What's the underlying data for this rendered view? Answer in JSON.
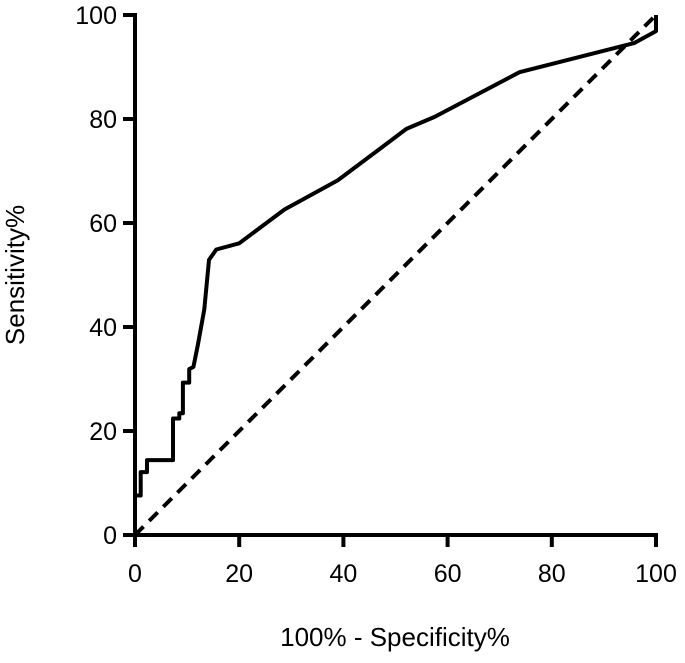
{
  "chart_data": {
    "type": "line",
    "title": "",
    "xlabel": "100% - Specificity%",
    "ylabel": "Sensitivity%",
    "xlim": [
      0,
      100
    ],
    "ylim": [
      0,
      100
    ],
    "xticks": [
      0,
      20,
      40,
      60,
      80,
      100
    ],
    "yticks": [
      0,
      20,
      40,
      60,
      80,
      100
    ],
    "grid": false,
    "series": [
      {
        "style": "solid",
        "color": "#000000",
        "x": [
          0,
          0,
          1.1,
          1.1,
          2.3,
          2.3,
          3.1,
          3.1,
          7.3,
          7.3,
          8.5,
          8.5,
          9.2,
          9.2,
          10.4,
          10.4,
          11.2,
          12.1,
          13.3,
          14.2,
          15.6,
          20.0,
          28.7,
          38.9,
          52.1,
          57.5,
          73.8,
          95.8,
          100,
          100
        ],
        "y": [
          0,
          7.6,
          7.6,
          12.1,
          12.1,
          14.4,
          14.4,
          14.4,
          14.4,
          22.4,
          22.4,
          23.4,
          23.4,
          29.3,
          29.3,
          31.9,
          32.3,
          36.7,
          43.4,
          52.9,
          54.9,
          56.1,
          62.6,
          68.2,
          78.1,
          80.4,
          89.0,
          94.6,
          96.9,
          100
        ]
      },
      {
        "style": "dashed",
        "color": "#000000",
        "x": [
          0,
          100
        ],
        "y": [
          0,
          100
        ]
      }
    ]
  }
}
